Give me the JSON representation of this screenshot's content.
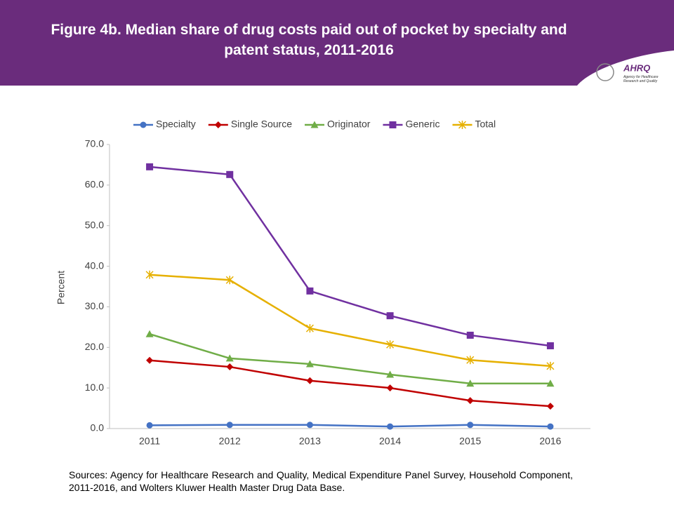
{
  "header": {
    "logo_name": "AHRQ",
    "logo_tagline": "Agency for Healthcare Research and Quality"
  },
  "chart_data": {
    "type": "line",
    "title": "Figure 4b. Median share of drug costs paid out of pocket by specialty and patent status, 2011-2016",
    "y_label": "Percent",
    "categories": [
      "2011",
      "2012",
      "2013",
      "2014",
      "2015",
      "2016"
    ],
    "series": [
      {
        "name": "Specialty",
        "color": "#4472c4",
        "marker": "circle",
        "values": [
          0.8,
          0.9,
          0.9,
          0.5,
          0.9,
          0.5
        ]
      },
      {
        "name": "Single Source",
        "color": "#c00000",
        "marker": "diamond",
        "values": [
          16.8,
          15.2,
          11.8,
          10.0,
          6.9,
          5.5
        ]
      },
      {
        "name": "Originator",
        "color": "#70ad47",
        "marker": "triangle",
        "values": [
          23.3,
          17.3,
          15.9,
          13.3,
          11.1,
          11.1
        ]
      },
      {
        "name": "Generic",
        "color": "#7030a0",
        "marker": "square",
        "values": [
          64.5,
          62.6,
          33.9,
          27.8,
          23.0,
          20.4
        ]
      },
      {
        "name": "Total",
        "color": "#e6b000",
        "marker": "star",
        "values": [
          37.9,
          36.6,
          24.7,
          20.7,
          16.9,
          15.4
        ]
      }
    ],
    "ylim": [
      0,
      70
    ],
    "yticks": [
      {
        "value": 0,
        "label": "0.0"
      },
      {
        "value": 10,
        "label": "10.0"
      },
      {
        "value": 20,
        "label": "20.0"
      },
      {
        "value": 30,
        "label": "30.0"
      },
      {
        "value": 40,
        "label": "40.0"
      },
      {
        "value": 50,
        "label": "50.0"
      },
      {
        "value": 60,
        "label": "60.0"
      },
      {
        "value": 70,
        "label": "70.0"
      }
    ],
    "legend": "top",
    "grid": false
  },
  "sources": "Sources: Agency for Healthcare Research and Quality, Medical Expenditure Panel Survey, Household Component, 2011-2016, and Wolters Kluwer Health Master Drug Data Base."
}
